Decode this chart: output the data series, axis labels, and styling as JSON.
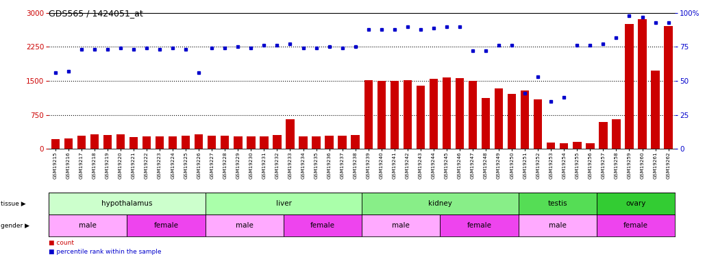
{
  "title": "GDS565 / 1424051_at",
  "samples": [
    "GSM19215",
    "GSM19216",
    "GSM19217",
    "GSM19218",
    "GSM19219",
    "GSM19220",
    "GSM19221",
    "GSM19222",
    "GSM19223",
    "GSM19224",
    "GSM19225",
    "GSM19226",
    "GSM19227",
    "GSM19228",
    "GSM19229",
    "GSM19230",
    "GSM19231",
    "GSM19232",
    "GSM19233",
    "GSM19234",
    "GSM19235",
    "GSM19236",
    "GSM19237",
    "GSM19238",
    "GSM19239",
    "GSM19240",
    "GSM19241",
    "GSM19242",
    "GSM19243",
    "GSM19244",
    "GSM19245",
    "GSM19246",
    "GSM19247",
    "GSM19248",
    "GSM19249",
    "GSM19250",
    "GSM19251",
    "GSM19252",
    "GSM19253",
    "GSM19254",
    "GSM19255",
    "GSM19256",
    "GSM19257",
    "GSM19258",
    "GSM19259",
    "GSM19260",
    "GSM19261",
    "GSM19262"
  ],
  "counts": [
    220,
    240,
    300,
    320,
    310,
    320,
    265,
    280,
    285,
    275,
    290,
    320,
    300,
    290,
    280,
    275,
    285,
    315,
    660,
    285,
    285,
    295,
    300,
    315,
    1520,
    1500,
    1500,
    1510,
    1390,
    1540,
    1570,
    1560,
    1500,
    1120,
    1340,
    1220,
    1285,
    1100,
    150,
    125,
    155,
    125,
    590,
    650,
    2760,
    2860,
    1730,
    2710
  ],
  "percentiles": [
    56,
    57,
    73,
    73,
    73,
    74,
    73,
    74,
    73,
    74,
    73,
    56,
    74,
    74,
    75,
    74,
    76,
    76,
    77,
    74,
    74,
    75,
    74,
    75,
    88,
    88,
    88,
    90,
    88,
    89,
    90,
    90,
    72,
    72,
    76,
    76,
    41,
    53,
    35,
    38,
    76,
    76,
    77,
    82,
    98,
    97,
    93,
    93
  ],
  "bar_color": "#cc0000",
  "dot_color": "#0000cc",
  "ylim_left": [
    0,
    3000
  ],
  "ylim_right": [
    0,
    100
  ],
  "yticks_left": [
    0,
    750,
    1500,
    2250,
    3000
  ],
  "yticks_right": [
    0,
    25,
    50,
    75,
    100
  ],
  "tissue_groups": [
    {
      "label": "hypothalamus",
      "start": 0,
      "end": 11,
      "color": "#ccffcc"
    },
    {
      "label": "liver",
      "start": 12,
      "end": 23,
      "color": "#aaffaa"
    },
    {
      "label": "kidney",
      "start": 24,
      "end": 35,
      "color": "#88ee88"
    },
    {
      "label": "testis",
      "start": 36,
      "end": 41,
      "color": "#55dd55"
    },
    {
      "label": "ovary",
      "start": 42,
      "end": 47,
      "color": "#33cc33"
    }
  ],
  "gender_groups": [
    {
      "label": "male",
      "start": 0,
      "end": 5,
      "color": "#ffaaff"
    },
    {
      "label": "female",
      "start": 6,
      "end": 11,
      "color": "#ee44ee"
    },
    {
      "label": "male",
      "start": 12,
      "end": 17,
      "color": "#ffaaff"
    },
    {
      "label": "female",
      "start": 18,
      "end": 23,
      "color": "#ee44ee"
    },
    {
      "label": "male",
      "start": 24,
      "end": 29,
      "color": "#ffaaff"
    },
    {
      "label": "female",
      "start": 30,
      "end": 35,
      "color": "#ee44ee"
    },
    {
      "label": "male",
      "start": 36,
      "end": 41,
      "color": "#ffaaff"
    },
    {
      "label": "female",
      "start": 42,
      "end": 47,
      "color": "#ee44ee"
    }
  ],
  "background_color": "#ffffff",
  "label_tissue": "tissue",
  "label_gender": "gender",
  "legend_count": "count",
  "legend_pct": "percentile rank within the sample"
}
